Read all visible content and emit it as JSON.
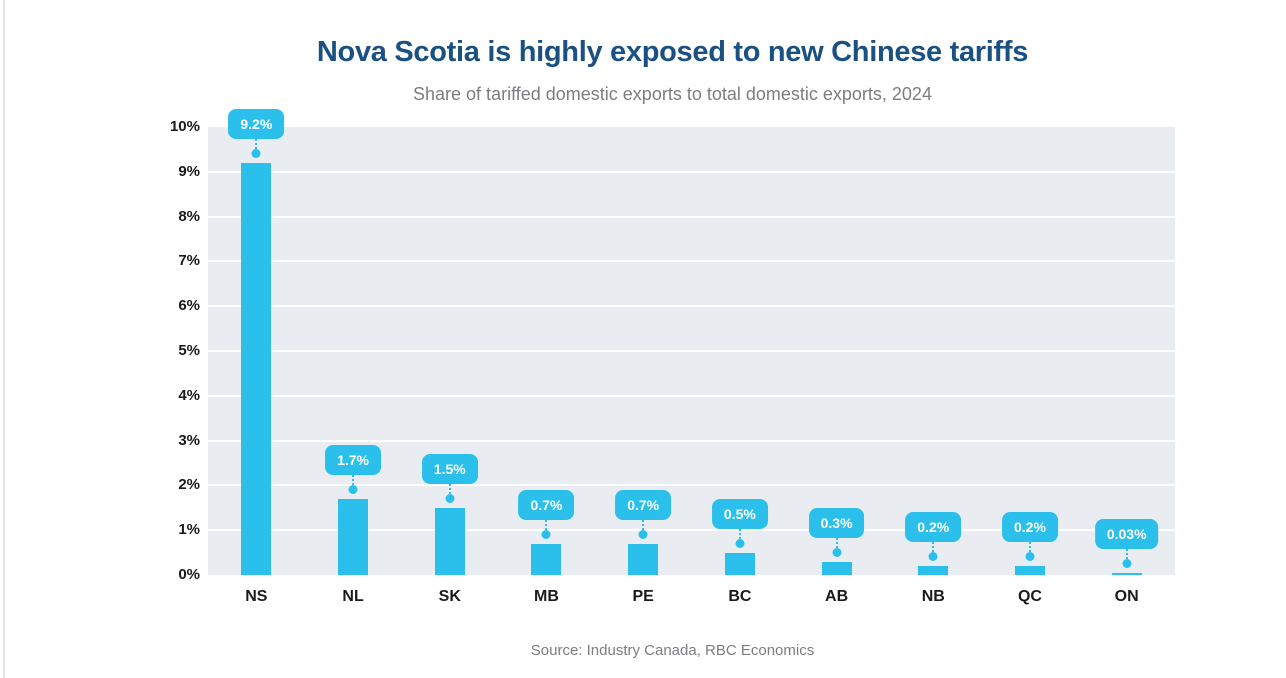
{
  "chart_data": {
    "type": "bar",
    "title": "Nova Scotia is highly exposed to new Chinese tariffs",
    "subtitle": "Share of tariffed domestic exports to total domestic exports, 2024",
    "source": "Source: Industry Canada, RBC Economics",
    "categories": [
      "NS",
      "NL",
      "SK",
      "MB",
      "PE",
      "BC",
      "AB",
      "NB",
      "QC",
      "ON"
    ],
    "values": [
      9.2,
      1.7,
      1.5,
      0.7,
      0.7,
      0.5,
      0.3,
      0.2,
      0.2,
      0.03
    ],
    "value_labels": [
      "9.2%",
      "1.7%",
      "1.5%",
      "0.7%",
      "0.7%",
      "0.5%",
      "0.3%",
      "0.2%",
      "0.2%",
      "0.03%"
    ],
    "xlabel": "",
    "ylabel": "",
    "ylim": [
      0,
      10
    ],
    "yticks": [
      "0%",
      "1%",
      "2%",
      "3%",
      "4%",
      "5%",
      "6%",
      "7%",
      "8%",
      "9%",
      "10%"
    ],
    "grid": true,
    "legend": "none",
    "colors": {
      "bar": "#2bc0ec",
      "title": "#1b5083",
      "subtitle_text": "#7b7e81",
      "plot_background": "#e9edf1",
      "gridline": "#ffffff",
      "axis_text": "#1a1a1a",
      "callout_text": "#ffffff"
    }
  }
}
